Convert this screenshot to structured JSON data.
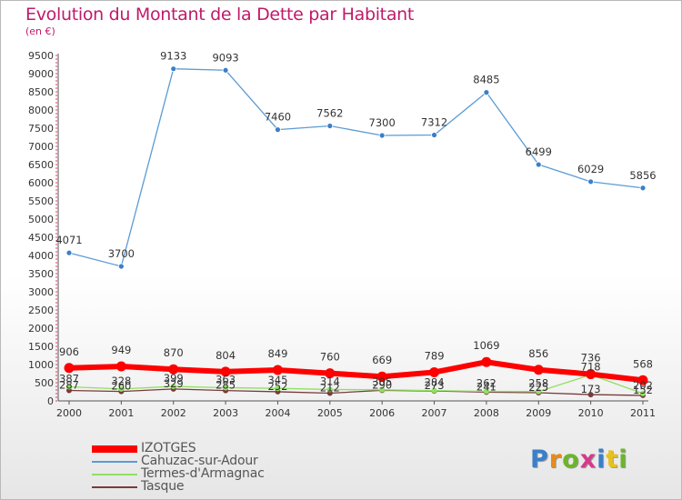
{
  "title": "Evolution du Montant de la Dette par Habitant",
  "unit": "(en €)",
  "logo": {
    "text": "Proxiti",
    "letter_colors": [
      "#3a7fc8",
      "#e88a1a",
      "#6bb52a",
      "#d63a8a",
      "#3a7fc8",
      "#e8c21a",
      "#6bb52a"
    ]
  },
  "chart_data": {
    "type": "line",
    "title": "Evolution du Montant de la Dette par Habitant",
    "ylabel": "(en €)",
    "xlabel": "",
    "ylim": [
      0,
      9500
    ],
    "yticks": [
      0,
      500,
      1000,
      1500,
      2000,
      2500,
      3000,
      3500,
      4000,
      4500,
      5000,
      5500,
      6000,
      6500,
      7000,
      7500,
      8000,
      8500,
      9000,
      9500
    ],
    "categories": [
      "2000",
      "2001",
      "2002",
      "2003",
      "2004",
      "2005",
      "2006",
      "2007",
      "2008",
      "2009",
      "2010",
      "2011"
    ],
    "grid": false,
    "legend_position": "bottom-left",
    "series": [
      {
        "name": "IZOTGES",
        "color": "#ff0000",
        "values": [
          906,
          949,
          870,
          804,
          849,
          760,
          669,
          789,
          1069,
          856,
          736,
          568
        ]
      },
      {
        "name": "Cahuzac-sur-Adour",
        "color": "#5b9bd5",
        "values": [
          4071,
          3700,
          9133,
          9093,
          7460,
          7562,
          7300,
          7312,
          8485,
          6499,
          6029,
          5856
        ]
      },
      {
        "name": "Termes-d'Armagnac",
        "color": "#90e060",
        "values": [
          387,
          328,
          399,
          363,
          345,
          314,
          305,
          284,
          262,
          258,
          718,
          202
        ]
      },
      {
        "name": "Tasque",
        "color": "#7a3b3b",
        "values": [
          287,
          260,
          329,
          285,
          252,
          212,
          290,
          273,
          241,
          225,
          173,
          152
        ]
      }
    ]
  }
}
